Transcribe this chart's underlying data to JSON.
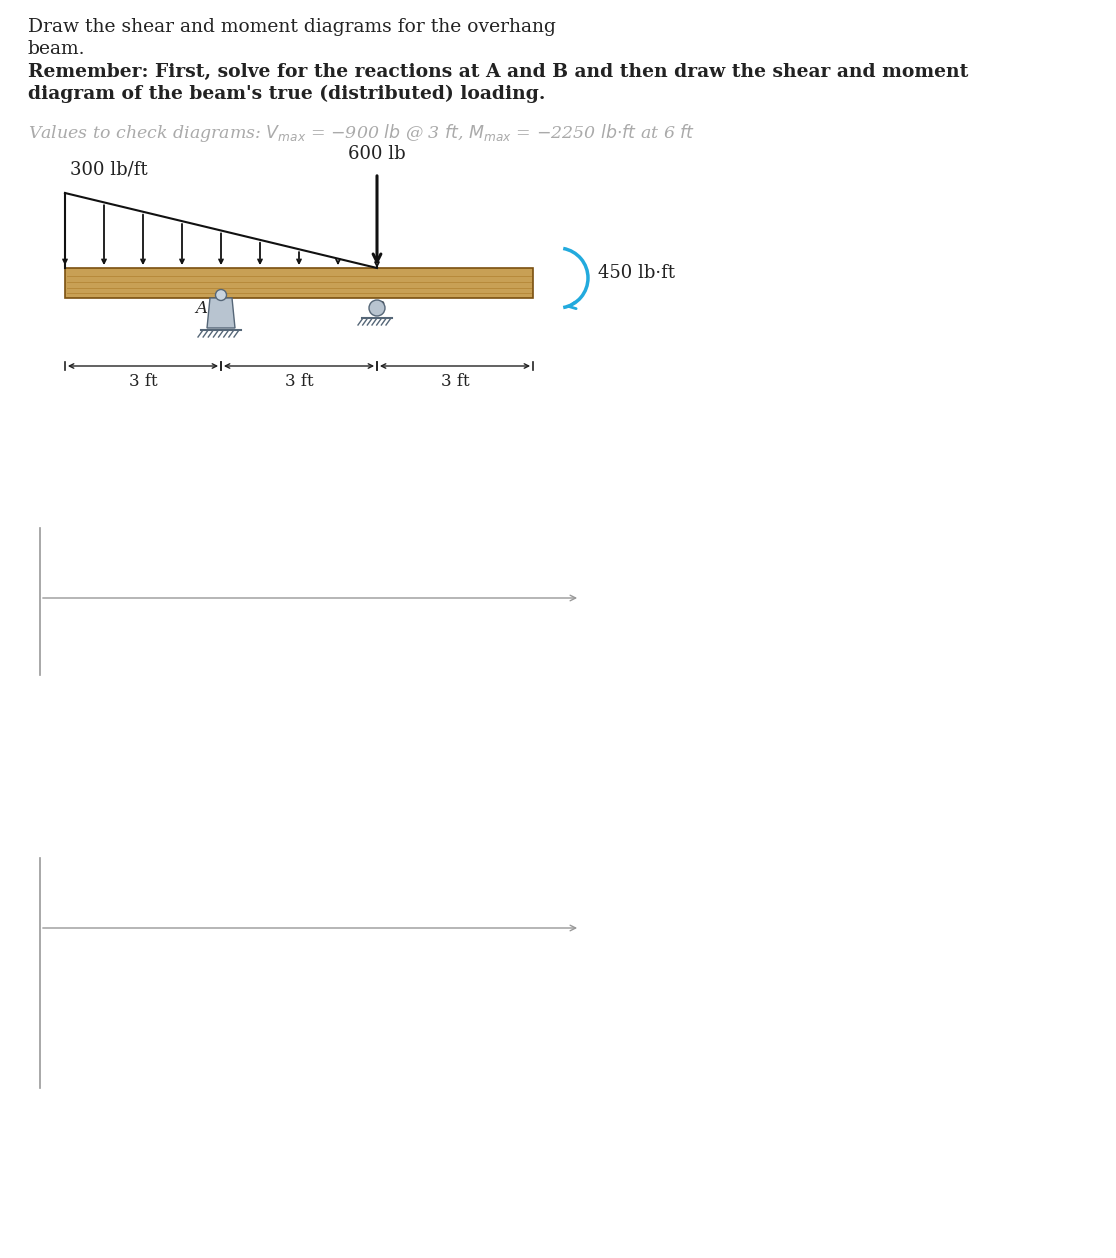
{
  "title_line1": "Draw the shear and moment diagrams for the overhang",
  "title_line2": "beam.",
  "remember_line1": "Remember: First, solve for the reactions at A and B and then draw the shear and moment",
  "remember_line2": "diagram of the beam's true (distributed) loading.",
  "values_text": "Values to check diagrams: $V_{max}$ = $-$900 $lb$ @ 3 $ft$, $M_{max}$ = $-$2250 $lb$ $\\cdot$ $ft$ at 6 $ft$",
  "dist_load_label": "300 lb/ft",
  "point_load_label": "600 lb",
  "moment_label": "450 lb·ft",
  "bg_color": "#ffffff",
  "beam_color": "#c8a055",
  "beam_edge_color": "#7a5010",
  "grain_color": "#b08030",
  "axis_color": "#999999",
  "text_color": "#222222",
  "text_color_values": "#aaaaaa",
  "dist_arrow_color": "#111111",
  "point_arrow_color": "#111111",
  "moment_arrow_color": "#22aadd",
  "support_fill": "#b8c4d0",
  "support_edge": "#556677",
  "dim_color": "#222222"
}
